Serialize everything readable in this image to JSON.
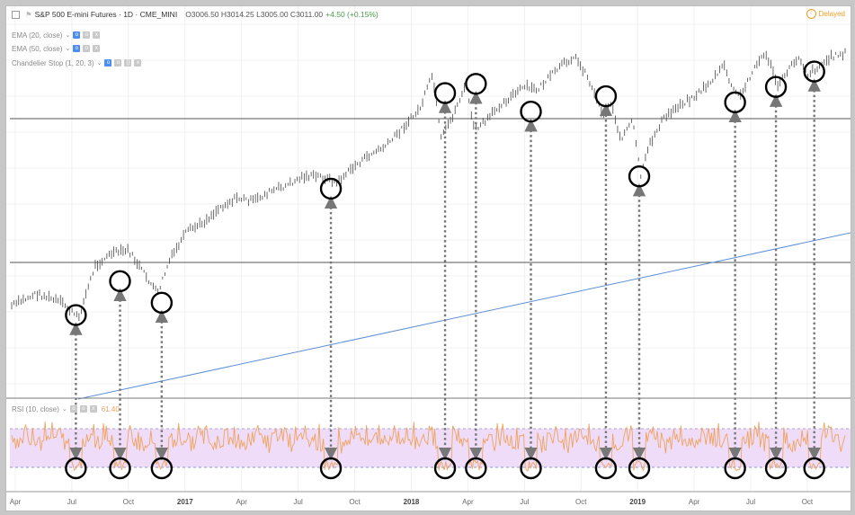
{
  "header": {
    "symbol": "S&P 500 E-mini Futures · 1D · CME_MINI",
    "ohlc": "O3006.50  H3014.25  L3005.00  C3011.00",
    "change": "+4.50 (+0.15%)",
    "delayed": "Delayed"
  },
  "indicators": [
    {
      "label": "EMA (20, close)"
    },
    {
      "label": "EMA (50, close)"
    },
    {
      "label": "Chandelier Stop (1, 20, 3)"
    }
  ],
  "rsi": {
    "label": "RSI (10, close)",
    "value": "61.40"
  },
  "colors": {
    "price": "#444444",
    "trendline": "#5b8fd6",
    "rsi_line": "#f0a35e",
    "rsi_band": "#eedcf8",
    "arrows": "#777777",
    "circles": "#000000",
    "hlines": "#555555"
  },
  "chart_data": {
    "type": "line",
    "title": "S&P 500 E-mini Futures · 1D · CME_MINI",
    "x_ticks": [
      {
        "label": "Apr",
        "bold": false
      },
      {
        "label": "Jul",
        "bold": false
      },
      {
        "label": "Oct",
        "bold": false
      },
      {
        "label": "2017",
        "bold": true
      },
      {
        "label": "Apr",
        "bold": false
      },
      {
        "label": "Jul",
        "bold": false
      },
      {
        "label": "Oct",
        "bold": false
      },
      {
        "label": "2018",
        "bold": true
      },
      {
        "label": "Apr",
        "bold": false
      },
      {
        "label": "Jul",
        "bold": false
      },
      {
        "label": "Oct",
        "bold": false
      },
      {
        "label": "2019",
        "bold": true
      },
      {
        "label": "Apr",
        "bold": false
      },
      {
        "label": "Jul",
        "bold": false
      },
      {
        "label": "Oct",
        "bold": false
      }
    ],
    "price_path_pct": [
      [
        0.0,
        0.18
      ],
      [
        0.03,
        0.22
      ],
      [
        0.06,
        0.19
      ],
      [
        0.08,
        0.14
      ],
      [
        0.1,
        0.31
      ],
      [
        0.12,
        0.35
      ],
      [
        0.14,
        0.36
      ],
      [
        0.155,
        0.3
      ],
      [
        0.175,
        0.22
      ],
      [
        0.19,
        0.33
      ],
      [
        0.21,
        0.42
      ],
      [
        0.23,
        0.45
      ],
      [
        0.25,
        0.5
      ],
      [
        0.27,
        0.53
      ],
      [
        0.29,
        0.52
      ],
      [
        0.31,
        0.55
      ],
      [
        0.33,
        0.57
      ],
      [
        0.35,
        0.6
      ],
      [
        0.37,
        0.6
      ],
      [
        0.39,
        0.58
      ],
      [
        0.41,
        0.63
      ],
      [
        0.43,
        0.67
      ],
      [
        0.45,
        0.7
      ],
      [
        0.47,
        0.76
      ],
      [
        0.49,
        0.82
      ],
      [
        0.505,
        0.93
      ],
      [
        0.515,
        0.72
      ],
      [
        0.53,
        0.8
      ],
      [
        0.545,
        0.9
      ],
      [
        0.555,
        0.75
      ],
      [
        0.57,
        0.78
      ],
      [
        0.585,
        0.83
      ],
      [
        0.6,
        0.86
      ],
      [
        0.615,
        0.89
      ],
      [
        0.63,
        0.88
      ],
      [
        0.645,
        0.92
      ],
      [
        0.66,
        0.96
      ],
      [
        0.675,
        0.99
      ],
      [
        0.69,
        0.93
      ],
      [
        0.7,
        0.86
      ],
      [
        0.71,
        0.8
      ],
      [
        0.72,
        0.84
      ],
      [
        0.73,
        0.72
      ],
      [
        0.745,
        0.78
      ],
      [
        0.755,
        0.6
      ],
      [
        0.765,
        0.7
      ],
      [
        0.78,
        0.78
      ],
      [
        0.8,
        0.83
      ],
      [
        0.82,
        0.86
      ],
      [
        0.84,
        0.91
      ],
      [
        0.855,
        0.96
      ],
      [
        0.865,
        0.88
      ],
      [
        0.875,
        0.86
      ],
      [
        0.89,
        0.95
      ],
      [
        0.905,
        1.0
      ],
      [
        0.92,
        0.89
      ],
      [
        0.93,
        0.94
      ],
      [
        0.945,
        0.99
      ],
      [
        0.955,
        0.93
      ],
      [
        0.97,
        0.96
      ],
      [
        0.985,
        0.99
      ],
      [
        1.0,
        1.0
      ]
    ],
    "rsi_levels": {
      "upper": 70,
      "lower": 30
    },
    "marked_lows_x_pct": [
      0.077,
      0.13,
      0.18,
      0.383,
      0.52,
      0.557,
      0.623,
      0.713,
      0.753,
      0.868,
      0.917,
      0.963
    ],
    "marked_lows_price_y_pct": [
      0.15,
      0.26,
      0.19,
      0.56,
      0.87,
      0.9,
      0.81,
      0.86,
      0.6,
      0.84,
      0.89,
      0.94
    ]
  }
}
